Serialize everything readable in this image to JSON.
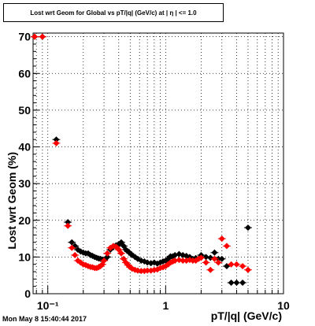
{
  "title": "Lost wrt Geom for Global vs pT/|q| (GeV/c) at | η | <= 1.0",
  "timestamp": "Mon May  8 15:40:44 2017",
  "chart_data": {
    "type": "scatter",
    "xlabel": "pT/|q| (GeV/c)",
    "ylabel": "Lost wrt Geom (%)",
    "xscale": "log",
    "xlim": [
      0.075,
      10
    ],
    "ylim": [
      0,
      71
    ],
    "x_tick_labels": [
      "10⁻¹",
      "1",
      "10"
    ],
    "y_tick_labels": [
      "0",
      "10",
      "20",
      "30",
      "40",
      "50",
      "60",
      "70"
    ],
    "grid": true,
    "series": [
      {
        "color": "#000000",
        "marker": "diamond",
        "x": [
          0.075,
          0.09,
          0.118,
          0.148,
          0.16,
          0.17,
          0.18,
          0.19,
          0.2,
          0.21,
          0.22,
          0.23,
          0.24,
          0.25,
          0.26,
          0.27,
          0.28,
          0.29,
          0.3,
          0.32,
          0.34,
          0.36,
          0.38,
          0.4,
          0.42,
          0.44,
          0.46,
          0.48,
          0.5,
          0.52,
          0.55,
          0.58,
          0.62,
          0.66,
          0.7,
          0.75,
          0.8,
          0.85,
          0.9,
          0.95,
          1.0,
          1.05,
          1.1,
          1.15,
          1.2,
          1.3,
          1.4,
          1.5,
          1.6,
          1.7,
          1.8,
          1.9,
          2.0,
          2.2,
          2.4,
          2.6,
          2.8,
          3.0,
          3.3,
          3.6,
          4.0,
          4.5,
          5.0
        ],
        "y": [
          70,
          70,
          42,
          19.5,
          14,
          13,
          12,
          11.5,
          11.2,
          11,
          11,
          10.5,
          10.3,
          10,
          9.8,
          9.6,
          9.5,
          9.3,
          9.2,
          10,
          12,
          12.8,
          13.2,
          13.5,
          14,
          13,
          12,
          11.5,
          11,
          10.5,
          10,
          9.5,
          9,
          8.8,
          8.5,
          8.3,
          8.5,
          8.2,
          8.5,
          8.8,
          9.0,
          9.5,
          10.2,
          10.2,
          10.5,
          10.8,
          10.5,
          10.3,
          10.0,
          9.5,
          9.7,
          9.5,
          10.5,
          10.0,
          9.8,
          11.2,
          9.5,
          9.5,
          7.5,
          3,
          3,
          3,
          18
        ]
      },
      {
        "color": "#ff0000",
        "marker": "diamond",
        "x": [
          0.075,
          0.09,
          0.118,
          0.148,
          0.16,
          0.17,
          0.18,
          0.19,
          0.2,
          0.21,
          0.22,
          0.23,
          0.24,
          0.25,
          0.26,
          0.27,
          0.28,
          0.29,
          0.3,
          0.32,
          0.34,
          0.36,
          0.38,
          0.4,
          0.42,
          0.44,
          0.46,
          0.48,
          0.5,
          0.52,
          0.55,
          0.58,
          0.62,
          0.66,
          0.7,
          0.75,
          0.8,
          0.85,
          0.9,
          0.95,
          1.0,
          1.05,
          1.1,
          1.15,
          1.2,
          1.3,
          1.4,
          1.5,
          1.6,
          1.7,
          1.8,
          1.9,
          2.0,
          2.2,
          2.4,
          2.6,
          2.8,
          3.0,
          3.3,
          3.6,
          4.0,
          4.5,
          5.0
        ],
        "y": [
          70,
          70,
          41,
          18.5,
          12.5,
          10.5,
          9,
          8.5,
          8,
          7.8,
          7.5,
          7.3,
          7.2,
          7,
          7,
          7.2,
          7.5,
          8,
          9,
          11,
          12.5,
          13,
          12.8,
          12,
          11,
          9.5,
          8.5,
          7.8,
          7.2,
          6.8,
          6.5,
          6.3,
          6.2,
          6.2,
          6.3,
          6.3,
          6.5,
          6.6,
          7.0,
          7.2,
          7.5,
          8.0,
          8.5,
          8.8,
          9.0,
          9.2,
          9.0,
          9.0,
          9.2,
          9.0,
          9.0,
          9.5,
          9.8,
          8.5,
          6.5,
          9.5,
          8.5,
          15,
          13,
          8,
          8,
          7.5,
          6.5
        ]
      }
    ]
  }
}
